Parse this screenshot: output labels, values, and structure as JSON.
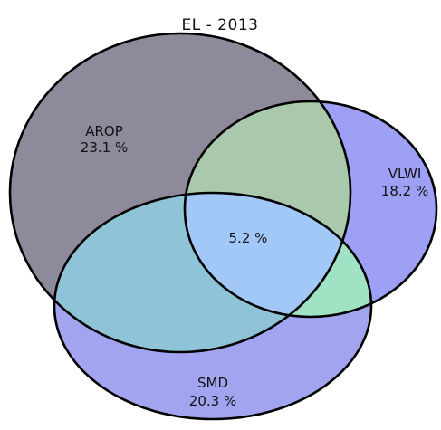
{
  "title": "EL - 2013",
  "sets": {
    "arop": {
      "name": "AROP",
      "value": "23.1 %",
      "color": "#8e8a9c"
    },
    "vlwi": {
      "name": "VLWI",
      "value": "18.2 %",
      "color": "#9ea0f5"
    },
    "smd": {
      "name": "SMD",
      "value": "20.3 %",
      "color": "#a2a4f0"
    }
  },
  "intersection": {
    "value": "5.2 %"
  },
  "region_colors": {
    "arop_smd": "#8ec3d8",
    "arop_vlwi": "#a9c8ac",
    "vlwi_smd": "#9fe3c4",
    "all": "#a2c8f7"
  }
}
